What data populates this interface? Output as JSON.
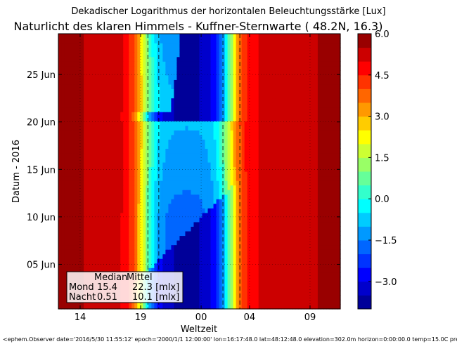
{
  "chart_data": {
    "type": "heatmap",
    "supertitle": "Dekadischer Logarithmus der horizontalen Beleuchtungsstärke [Lux]",
    "title": "Naturlicht des klaren Himmels - Kuffner-Sternwarte ( 48.2N, 16.3)",
    "xlabel": "Weltzeit",
    "ylabel": "Datum - 2016",
    "x_range_hours": [
      12.2,
      35.5
    ],
    "y_range_days": [
      0.3,
      29.3
    ],
    "x_ticks": [
      {
        "hour": 14,
        "label": "14"
      },
      {
        "hour": 19,
        "label": "19"
      },
      {
        "hour": 24,
        "label": "00"
      },
      {
        "hour": 28,
        "label": "04"
      },
      {
        "hour": 33,
        "label": "09"
      }
    ],
    "y_ticks": [
      {
        "day": 5,
        "label": "05 Jun"
      },
      {
        "day": 10,
        "label": "10 Jun"
      },
      {
        "day": 15,
        "label": "15 Jun"
      },
      {
        "day": 20,
        "label": "20 Jun"
      },
      {
        "day": 25,
        "label": "25 Jun"
      }
    ],
    "colorbar": {
      "min": -4.0,
      "max": 6.0,
      "step": 0.5,
      "ticks": [
        "6.0",
        "4.5",
        "3.0",
        "1.5",
        "0.0",
        "−1.5",
        "−3.0"
      ],
      "tick_values": [
        6.0,
        4.5,
        3.0,
        1.5,
        0.0,
        -1.5,
        -3.0
      ]
    },
    "dashed_lines_hours": [
      19.6,
      20.5,
      25.8,
      27.2
    ],
    "median_label": "Median",
    "mean_label": "Mittel",
    "rows": [
      {
        "name": "Mond",
        "median": "15.4",
        "mean": "22.3 [mlx]"
      },
      {
        "name": "Nacht",
        "median": "0.51",
        "mean": "10.1 [mlx]"
      }
    ]
  },
  "footer": "<ephem.Observer date='2016/5/30 11:55:12' epoch='2000/1/1 12:00:00' lon=16:17:48.0 lat=48:12:48.0 elevation=302.0m horizon=0:00:00.0 temp=15.0C pressure"
}
